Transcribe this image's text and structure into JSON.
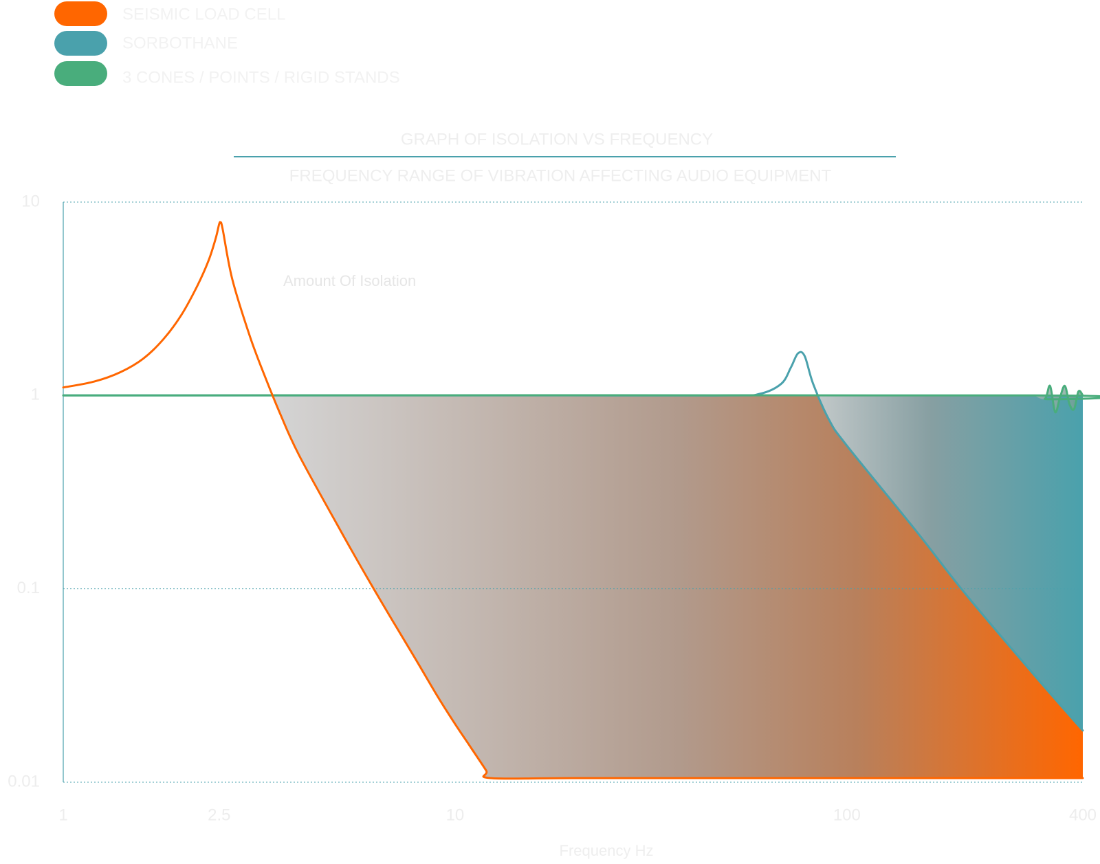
{
  "chart_data": {
    "type": "line",
    "title": "GRAPH OF ISOLATION VS FREQUENCY",
    "subtitle": "FREQUENCY RANGE OF VIBRATION AFFECTING AUDIO EQUIPMENT",
    "xlabel": "Frequency Hz",
    "ylabel": "",
    "annotation": "Amount Of Isolation",
    "x_scale": "log",
    "y_scale": "log",
    "xlim": [
      1,
      400
    ],
    "ylim": [
      0.01,
      10
    ],
    "x_ticks": [
      {
        "value": 1,
        "label": "1"
      },
      {
        "value": 2.5,
        "label": "2.5"
      },
      {
        "value": 10,
        "label": "10"
      },
      {
        "value": 100,
        "label": "100"
      },
      {
        "value": 400,
        "label": "400"
      }
    ],
    "y_ticks": [
      {
        "value": 10,
        "label": "10"
      },
      {
        "value": 1,
        "label": "1"
      },
      {
        "value": 0.1,
        "label": "0.1"
      },
      {
        "value": 0.01,
        "label": "0.01"
      }
    ],
    "grid": true,
    "legend_position": "top-left",
    "series": [
      {
        "name": "SEISMIC LOAD CELL",
        "color": "#ff6600",
        "x": [
          1,
          1.2,
          1.4,
          1.6,
          1.8,
          2.0,
          2.2,
          2.35,
          2.45,
          2.5,
          2.52,
          2.55,
          2.7,
          3.0,
          3.3,
          3.6,
          4.0,
          5.0,
          6.0,
          7.0,
          8.0,
          9.0,
          10.0,
          11.0,
          12.0,
          12.3,
          20,
          50,
          100,
          200,
          400
        ],
        "y": [
          1.1,
          1.18,
          1.32,
          1.55,
          1.95,
          2.6,
          3.7,
          5.0,
          6.5,
          7.7,
          7.8,
          7.3,
          4.0,
          2.0,
          1.2,
          0.78,
          0.49,
          0.215,
          0.112,
          0.066,
          0.042,
          0.028,
          0.02,
          0.015,
          0.0115,
          0.0105,
          0.0105,
          0.0105,
          0.0105,
          0.0105,
          0.0105
        ]
      },
      {
        "name": "SORBOTHANE",
        "color": "#4aa1ac",
        "x": [
          1,
          20,
          50,
          60,
          68,
          72,
          75,
          78,
          82,
          90,
          100,
          150,
          200,
          300,
          400
        ],
        "y": [
          1.0,
          1.0,
          1.0,
          1.02,
          1.15,
          1.4,
          1.65,
          1.6,
          1.15,
          0.75,
          0.55,
          0.2,
          0.095,
          0.036,
          0.0185
        ]
      },
      {
        "name": "3 CONES / POINTS / RIGID STANDS",
        "color": "#49ad7c",
        "x": [
          1,
          300,
          320,
          330,
          340,
          350,
          360,
          370,
          380,
          390,
          400
        ],
        "y": [
          1.0,
          1.0,
          0.96,
          1.12,
          0.82,
          0.98,
          1.12,
          0.9,
          0.85,
          1.05,
          1.0
        ]
      }
    ]
  }
}
